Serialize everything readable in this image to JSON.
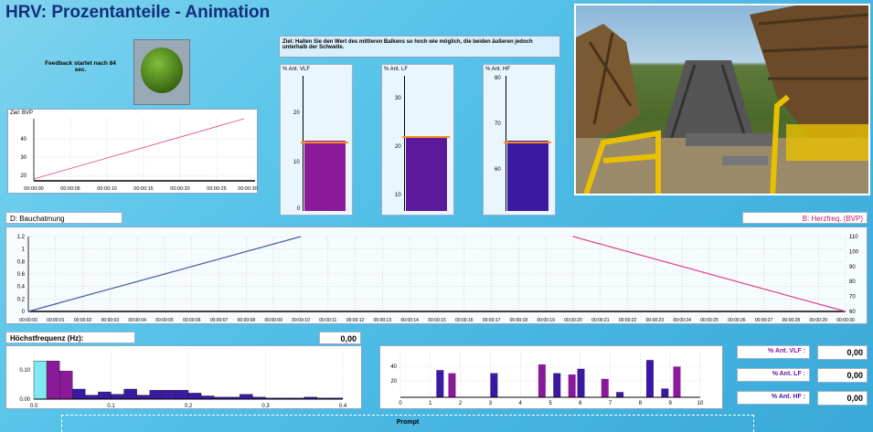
{
  "app": {
    "title": "HRV: Prozentanteile - Animation"
  },
  "feedback": {
    "text": "Feedback startet nach 84 sec.",
    "indicator_color": "#3d6a12"
  },
  "trend_chart": {
    "label": "Ziel: BVP",
    "y_ticks": [
      "40",
      "30",
      "20"
    ],
    "x_ticks": [
      "00:00:00",
      "00:00:05",
      "00:00:10",
      "00:00:15",
      "00:00:20",
      "00:00:25",
      "00:00:30"
    ]
  },
  "goal": {
    "text": "Ziel: Halten Sie den Wert des mittleren Balkens so hoch wie möglich, die beiden äußeren jedoch unterhalb der Schwelle."
  },
  "bars": [
    {
      "label": "% Ant. VLF",
      "ticks": [
        "20",
        "10",
        "0"
      ],
      "color": "#8a1a9a",
      "fill": 0.36
    },
    {
      "label": "% Ant. LF",
      "ticks": [
        "30",
        "20",
        "10"
      ],
      "color": "#5a1a9a",
      "fill": 0.4
    },
    {
      "label": "% Ant. HF",
      "ticks": [
        "80",
        "70",
        "60"
      ],
      "color": "#3a1aa0",
      "fill": 0.37
    }
  ],
  "wide": {
    "left_label": "D:  Bauchatmung",
    "right_label": "B:  Herzfreq.  (BVP)",
    "left_ticks": [
      "1.2",
      "1",
      "0.8",
      "0.6",
      "0.4",
      "0.2",
      "0"
    ],
    "right_ticks": [
      "110",
      "100",
      "90",
      "80",
      "70",
      "60"
    ],
    "x_ticks": [
      "00:00:00",
      "00:00:01",
      "00:00:02",
      "00:00:03",
      "00:00:04",
      "00:00:05",
      "00:00:06",
      "00:00:07",
      "00:00:08",
      "00:00:09",
      "00:00:10",
      "00:00:11",
      "00:00:12",
      "00:00:13",
      "00:00:14",
      "00:00:15",
      "00:00:16",
      "00:00:17",
      "00:00:18",
      "00:00:19",
      "00:00:20",
      "00:00:21",
      "00:00:22",
      "00:00:23",
      "00:00:24",
      "00:00:25",
      "00:00:26",
      "00:00:27",
      "00:00:28",
      "00:00:29",
      "00:00:30"
    ]
  },
  "freq": {
    "label": "Höchstfrequenz (Hz):",
    "value": "0,00",
    "y_ticks": [
      "0.10",
      "0.00"
    ],
    "x_ticks": [
      "0.0",
      "0.1",
      "0.2",
      "0.3",
      "0.4"
    ]
  },
  "hist": {
    "y_ticks": [
      "40",
      "20"
    ],
    "x_ticks": [
      "0",
      "1",
      "2",
      "3",
      "4",
      "5",
      "6",
      "7",
      "8",
      "9",
      "10"
    ]
  },
  "stats": [
    {
      "label": "% Ant. VLF :",
      "value": "0,00"
    },
    {
      "label": "% Ant. LF :",
      "value": "0,00"
    },
    {
      "label": "% Ant. HF :",
      "value": "0,00"
    }
  ],
  "prompt": {
    "label": "Prompt"
  }
}
